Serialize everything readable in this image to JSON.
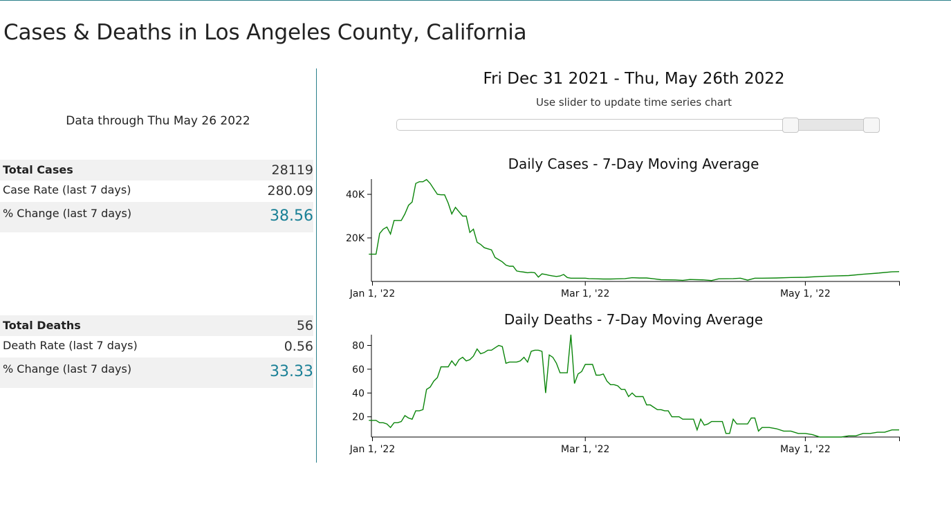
{
  "page": {
    "title": "Cases & Deaths in Los Angeles County, California"
  },
  "summary": {
    "data_through": "Data through Thu May 26 2022",
    "cases": [
      {
        "label": "Total Cases",
        "value": "28119"
      },
      {
        "label": "Case Rate (last 7 days)",
        "value": "280.09"
      },
      {
        "label": "% Change (last 7 days)",
        "value": "38.56"
      }
    ],
    "deaths": [
      {
        "label": "Total Deaths",
        "value": "56"
      },
      {
        "label": "Death Rate (last 7 days)",
        "value": "0.56"
      },
      {
        "label": "% Change (last 7 days)",
        "value": "33.33"
      }
    ]
  },
  "range": {
    "title": "Fri Dec 31 2021 - Thu, May 26th 2022",
    "hint": "Use slider to update time series chart",
    "selected_start_fraction": 0.817,
    "selected_end_fraction": 0.984
  },
  "colors": {
    "accent": "#1a8096",
    "line": "#0a850a",
    "divider": "#2a7f8a"
  },
  "chart_data": [
    {
      "type": "line",
      "title": "Daily Cases - 7-Day Moving Average",
      "x_start_day": 0,
      "x_end_day": 146,
      "x_ticks": [
        {
          "day": 0,
          "label": "Jan 1, '22"
        },
        {
          "day": 59,
          "label": "Mar 1, '22"
        },
        {
          "day": 120,
          "label": "May 1, '22"
        }
      ],
      "y_ticks": [
        {
          "value": 20000,
          "label": "20K"
        },
        {
          "value": 40000,
          "label": "40K"
        }
      ],
      "ylim": [
        0,
        47000
      ],
      "series": [
        {
          "name": "Daily Cases",
          "points": [
            [
              -1,
              12500
            ],
            [
              0,
              12500
            ],
            [
              1,
              12500
            ],
            [
              2,
              22000
            ],
            [
              3,
              24000
            ],
            [
              4,
              25000
            ],
            [
              5,
              21800
            ],
            [
              6,
              28000
            ],
            [
              7,
              28000
            ],
            [
              8,
              28000
            ],
            [
              9,
              31000
            ],
            [
              10,
              35000
            ],
            [
              11,
              36500
            ],
            [
              12,
              45000
            ],
            [
              13,
              45800
            ],
            [
              14,
              45800
            ],
            [
              15,
              46800
            ],
            [
              16,
              45000
            ],
            [
              17,
              42500
            ],
            [
              18,
              40000
            ],
            [
              19,
              39800
            ],
            [
              20,
              39800
            ],
            [
              21,
              36000
            ],
            [
              22,
              31000
            ],
            [
              23,
              34000
            ],
            [
              24,
              32000
            ],
            [
              25,
              30000
            ],
            [
              26,
              30000
            ],
            [
              27,
              22500
            ],
            [
              28,
              24000
            ],
            [
              29,
              18000
            ],
            [
              30,
              17000
            ],
            [
              31,
              15500
            ],
            [
              32,
              15000
            ],
            [
              33,
              14500
            ],
            [
              34,
              11000
            ],
            [
              35,
              10000
            ],
            [
              36,
              9000
            ],
            [
              37,
              7500
            ],
            [
              38,
              7000
            ],
            [
              39,
              7000
            ],
            [
              40,
              4800
            ],
            [
              41,
              4500
            ],
            [
              42,
              4300
            ],
            [
              43,
              4000
            ],
            [
              44,
              4200
            ],
            [
              45,
              4000
            ],
            [
              46,
              2000
            ],
            [
              47,
              3500
            ],
            [
              48,
              3200
            ],
            [
              49,
              2800
            ],
            [
              50,
              2500
            ],
            [
              51,
              2300
            ],
            [
              52,
              2500
            ],
            [
              53,
              3200
            ],
            [
              54,
              1800
            ],
            [
              55,
              1500
            ],
            [
              56,
              1500
            ],
            [
              57,
              1500
            ],
            [
              58,
              1500
            ],
            [
              59,
              1500
            ],
            [
              60,
              1300
            ],
            [
              62,
              1200
            ],
            [
              64,
              1100
            ],
            [
              66,
              1100
            ],
            [
              68,
              1200
            ],
            [
              70,
              1300
            ],
            [
              72,
              1700
            ],
            [
              74,
              1600
            ],
            [
              76,
              1600
            ],
            [
              78,
              1200
            ],
            [
              80,
              800
            ],
            [
              84,
              700
            ],
            [
              86,
              500
            ],
            [
              88,
              900
            ],
            [
              92,
              700
            ],
            [
              94,
              400
            ],
            [
              96,
              1200
            ],
            [
              100,
              1300
            ],
            [
              102,
              1500
            ],
            [
              104,
              600
            ],
            [
              106,
              1500
            ],
            [
              108,
              1500
            ],
            [
              112,
              1600
            ],
            [
              116,
              1800
            ],
            [
              120,
              1900
            ],
            [
              124,
              2300
            ],
            [
              128,
              2500
            ],
            [
              132,
              2700
            ],
            [
              136,
              3300
            ],
            [
              140,
              3800
            ],
            [
              144,
              4400
            ],
            [
              146,
              4500
            ]
          ]
        }
      ]
    },
    {
      "type": "line",
      "title": "Daily Deaths - 7-Day Moving Average",
      "x_start_day": 0,
      "x_end_day": 146,
      "x_ticks": [
        {
          "day": 0,
          "label": "Jan 1, '22"
        },
        {
          "day": 59,
          "label": "Mar 1, '22"
        },
        {
          "day": 120,
          "label": "May 1, '22"
        }
      ],
      "y_ticks": [
        {
          "value": 20,
          "label": "20"
        },
        {
          "value": 40,
          "label": "40"
        },
        {
          "value": 60,
          "label": "60"
        },
        {
          "value": 80,
          "label": "80"
        }
      ],
      "ylim": [
        3,
        89
      ],
      "series": [
        {
          "name": "Daily Deaths",
          "points": [
            [
              -1,
              17
            ],
            [
              0,
              17
            ],
            [
              1,
              17
            ],
            [
              2,
              15
            ],
            [
              3,
              15
            ],
            [
              4,
              14
            ],
            [
              5,
              11
            ],
            [
              6,
              15
            ],
            [
              7,
              15
            ],
            [
              8,
              16
            ],
            [
              9,
              21
            ],
            [
              10,
              19
            ],
            [
              11,
              18
            ],
            [
              12,
              25
            ],
            [
              13,
              25
            ],
            [
              14,
              26
            ],
            [
              15,
              43
            ],
            [
              16,
              45
            ],
            [
              17,
              50
            ],
            [
              18,
              53
            ],
            [
              19,
              62
            ],
            [
              20,
              62
            ],
            [
              21,
              62
            ],
            [
              22,
              67
            ],
            [
              23,
              63
            ],
            [
              24,
              68
            ],
            [
              25,
              70
            ],
            [
              26,
              67
            ],
            [
              27,
              68
            ],
            [
              28,
              71
            ],
            [
              29,
              77
            ],
            [
              30,
              73
            ],
            [
              31,
              74
            ],
            [
              32,
              76
            ],
            [
              33,
              76
            ],
            [
              34,
              78
            ],
            [
              35,
              80
            ],
            [
              36,
              79
            ],
            [
              37,
              65
            ],
            [
              38,
              66
            ],
            [
              39,
              66
            ],
            [
              40,
              66
            ],
            [
              41,
              67
            ],
            [
              42,
              70
            ],
            [
              43,
              66
            ],
            [
              44,
              75
            ],
            [
              45,
              76
            ],
            [
              46,
              76
            ],
            [
              47,
              75
            ],
            [
              48,
              40
            ],
            [
              49,
              72
            ],
            [
              50,
              70
            ],
            [
              51,
              65
            ],
            [
              52,
              57
            ],
            [
              53,
              57
            ],
            [
              54,
              57
            ],
            [
              55,
              89
            ],
            [
              56,
              48
            ],
            [
              57,
              56
            ],
            [
              58,
              58
            ],
            [
              59,
              64
            ],
            [
              60,
              64
            ],
            [
              61,
              64
            ],
            [
              62,
              55
            ],
            [
              63,
              55
            ],
            [
              64,
              56
            ],
            [
              65,
              50
            ],
            [
              66,
              47
            ],
            [
              67,
              47
            ],
            [
              68,
              46
            ],
            [
              69,
              43
            ],
            [
              70,
              43
            ],
            [
              71,
              37
            ],
            [
              72,
              40
            ],
            [
              73,
              37
            ],
            [
              74,
              37
            ],
            [
              75,
              37
            ],
            [
              76,
              30
            ],
            [
              77,
              30
            ],
            [
              78,
              28
            ],
            [
              79,
              26
            ],
            [
              80,
              26
            ],
            [
              81,
              25
            ],
            [
              82,
              25
            ],
            [
              83,
              20
            ],
            [
              84,
              20
            ],
            [
              85,
              20
            ],
            [
              86,
              18
            ],
            [
              87,
              18
            ],
            [
              88,
              18
            ],
            [
              89,
              18
            ],
            [
              90,
              9
            ],
            [
              91,
              18
            ],
            [
              92,
              13
            ],
            [
              93,
              14
            ],
            [
              94,
              16
            ],
            [
              95,
              16
            ],
            [
              96,
              16
            ],
            [
              97,
              16
            ],
            [
              98,
              6
            ],
            [
              99,
              6
            ],
            [
              100,
              18
            ],
            [
              101,
              14
            ],
            [
              102,
              14
            ],
            [
              103,
              14
            ],
            [
              104,
              14
            ],
            [
              105,
              19
            ],
            [
              106,
              19
            ],
            [
              107,
              8
            ],
            [
              108,
              11
            ],
            [
              110,
              11
            ],
            [
              112,
              10
            ],
            [
              114,
              8
            ],
            [
              116,
              8
            ],
            [
              118,
              6
            ],
            [
              120,
              6
            ],
            [
              122,
              5
            ],
            [
              124,
              3
            ],
            [
              126,
              3
            ],
            [
              128,
              3
            ],
            [
              130,
              3
            ],
            [
              132,
              4
            ],
            [
              134,
              4
            ],
            [
              136,
              6
            ],
            [
              138,
              6
            ],
            [
              140,
              7
            ],
            [
              142,
              7
            ],
            [
              144,
              9
            ],
            [
              146,
              9
            ]
          ]
        }
      ]
    }
  ]
}
